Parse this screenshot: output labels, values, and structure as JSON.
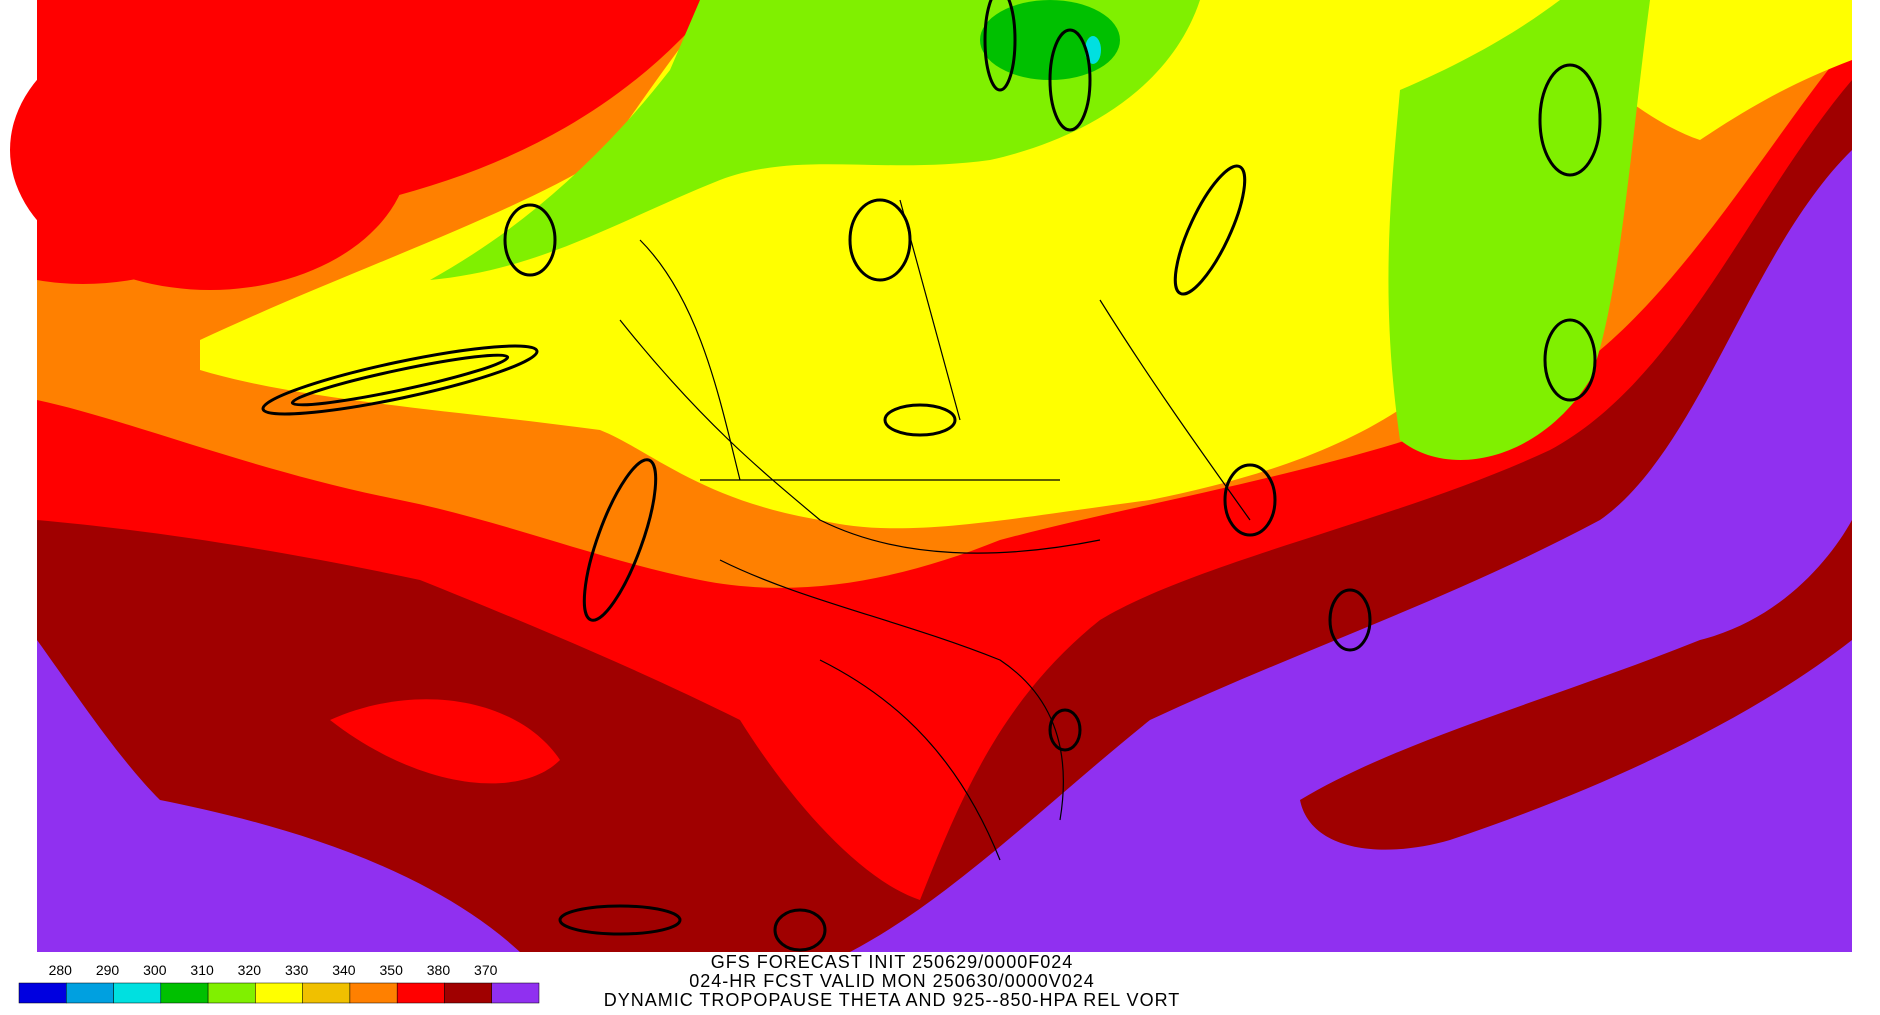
{
  "legend": {
    "labels": [
      280,
      290,
      300,
      310,
      320,
      330,
      340,
      350,
      380,
      370
    ],
    "colors": [
      "#0000e0",
      "#00a0e0",
      "#00e0e0",
      "#00c000",
      "#80f000",
      "#ffff00",
      "#f0c000",
      "#ff8000",
      "#ff0000",
      "#a00000",
      "#9030f0"
    ]
  },
  "title": {
    "lines": [
      "GFS FORECAST INIT 250629/0000F024",
      "024-HR FCST VALID MON 250630/0000V024",
      "DYNAMIC TROPOPAUSE THETA AND 925--850-HPA REL VORT"
    ]
  }
}
